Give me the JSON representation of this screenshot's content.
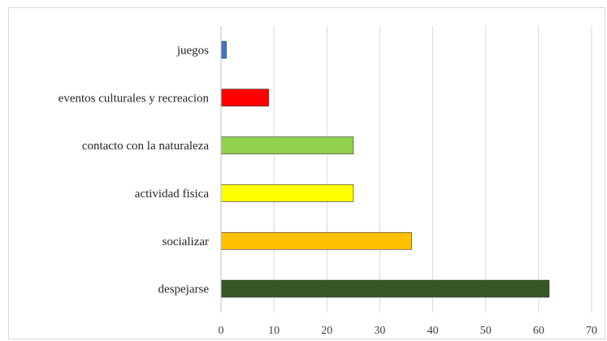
{
  "chart_data": {
    "type": "bar",
    "orientation": "horizontal",
    "categories": [
      "juegos",
      "eventos culturales y recreacion",
      "contacto con la naturaleza",
      "actividad fisica",
      "socializar",
      "despejarse"
    ],
    "values": [
      1,
      9,
      25,
      25,
      36,
      62
    ],
    "colors": [
      "#4472c4",
      "#ff0000",
      "#92d050",
      "#ffff00",
      "#ffc000",
      "#375623"
    ],
    "xlim": [
      0,
      70
    ],
    "xticks": [
      "0",
      "10",
      "20",
      "30",
      "40",
      "50",
      "60",
      "70"
    ],
    "title": "",
    "xlabel": "",
    "ylabel": "",
    "grid": "vertical",
    "legend": "none"
  }
}
